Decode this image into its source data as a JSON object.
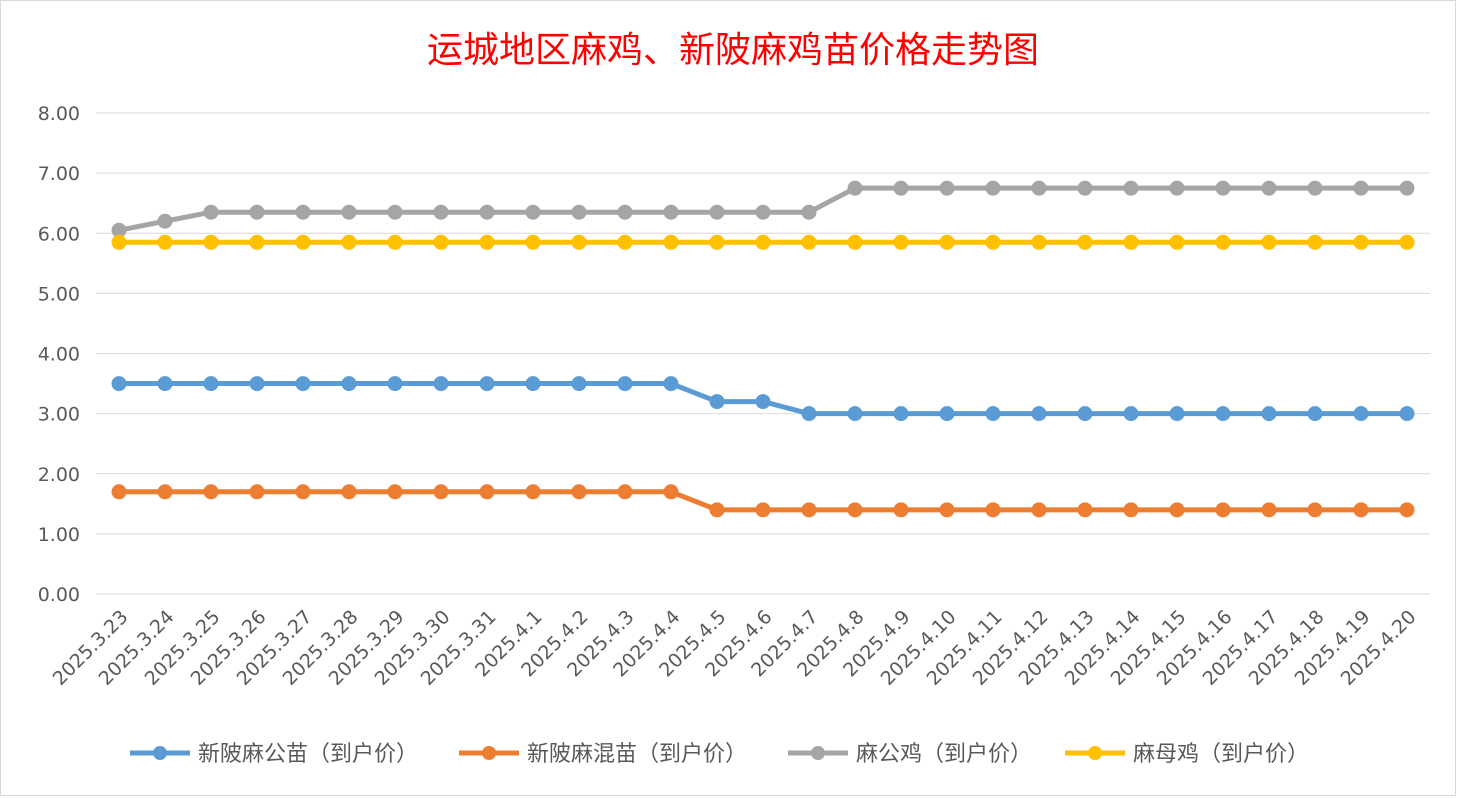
{
  "chart_data": {
    "type": "line",
    "title": "运城地区麻鸡、新陂麻鸡苗价格走势图",
    "xlabel": "",
    "ylabel": "",
    "ylim": [
      0,
      8
    ],
    "yticks": [
      "0.00",
      "1.00",
      "2.00",
      "3.00",
      "4.00",
      "5.00",
      "6.00",
      "7.00",
      "8.00"
    ],
    "grid": true,
    "legend_position": "bottom",
    "categories": [
      "2025.3.23",
      "2025.3.24",
      "2025.3.25",
      "2025.3.26",
      "2025.3.27",
      "2025.3.28",
      "2025.3.29",
      "2025.3.30",
      "2025.3.31",
      "2025.4.1",
      "2025.4.2",
      "2025.4.3",
      "2025.4.4",
      "2025.4.5",
      "2025.4.6",
      "2025.4.7",
      "2025.4.8",
      "2025.4.9",
      "2025.4.10",
      "2025.4.11",
      "2025.4.12",
      "2025.4.13",
      "2025.4.14",
      "2025.4.15",
      "2025.4.16",
      "2025.4.17",
      "2025.4.18",
      "2025.4.19",
      "2025.4.20"
    ],
    "series": [
      {
        "name": "新陂麻公苗（到户价）",
        "color": "#5b9bd5",
        "values": [
          3.5,
          3.5,
          3.5,
          3.5,
          3.5,
          3.5,
          3.5,
          3.5,
          3.5,
          3.5,
          3.5,
          3.5,
          3.5,
          3.2,
          3.2,
          3.0,
          3.0,
          3.0,
          3.0,
          3.0,
          3.0,
          3.0,
          3.0,
          3.0,
          3.0,
          3.0,
          3.0,
          3.0,
          3.0
        ]
      },
      {
        "name": "新陂麻混苗（到户价）",
        "color": "#ed7d31",
        "values": [
          1.7,
          1.7,
          1.7,
          1.7,
          1.7,
          1.7,
          1.7,
          1.7,
          1.7,
          1.7,
          1.7,
          1.7,
          1.7,
          1.4,
          1.4,
          1.4,
          1.4,
          1.4,
          1.4,
          1.4,
          1.4,
          1.4,
          1.4,
          1.4,
          1.4,
          1.4,
          1.4,
          1.4,
          1.4
        ]
      },
      {
        "name": "麻公鸡（到户价）",
        "color": "#a5a5a5",
        "values": [
          6.05,
          6.2,
          6.35,
          6.35,
          6.35,
          6.35,
          6.35,
          6.35,
          6.35,
          6.35,
          6.35,
          6.35,
          6.35,
          6.35,
          6.35,
          6.35,
          6.75,
          6.75,
          6.75,
          6.75,
          6.75,
          6.75,
          6.75,
          6.75,
          6.75,
          6.75,
          6.75,
          6.75,
          6.75
        ]
      },
      {
        "name": "麻母鸡（到户价）",
        "color": "#ffc000",
        "values": [
          5.85,
          5.85,
          5.85,
          5.85,
          5.85,
          5.85,
          5.85,
          5.85,
          5.85,
          5.85,
          5.85,
          5.85,
          5.85,
          5.85,
          5.85,
          5.85,
          5.85,
          5.85,
          5.85,
          5.85,
          5.85,
          5.85,
          5.85,
          5.85,
          5.85,
          5.85,
          5.85,
          5.85,
          5.85
        ]
      }
    ]
  }
}
